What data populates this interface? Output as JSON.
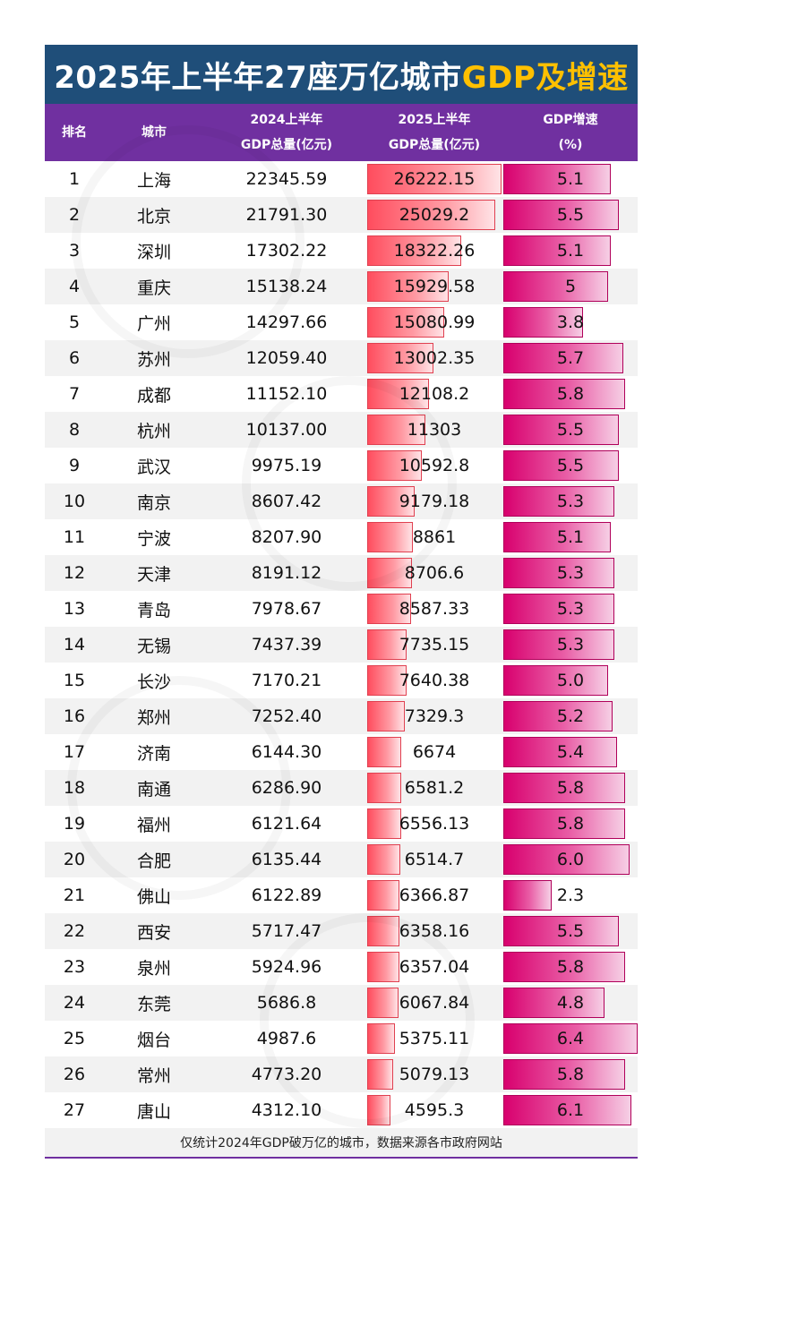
{
  "title": {
    "main": "2025年上半年27座万亿城市",
    "highlight": "GDP及增速"
  },
  "header": {
    "rank": "排名",
    "city": "城市",
    "gdp24_line1": "2024上半年",
    "gdp24_line2": "GDP总量(亿元)",
    "gdp25_line1": "2025上半年",
    "gdp25_line2": "GDP总量(亿元)",
    "growth_line1": "GDP增速",
    "growth_line2": "(%)"
  },
  "footer": "仅统计2024年GDP破万亿的城市，数据来源各市政府网站",
  "colors": {
    "title_bg": "#1f4e79",
    "title_highlight": "#ffc000",
    "header_bg": "#7030a0",
    "gdp_bar": "#ff4d5e",
    "growth_bar": "#d8006e"
  },
  "chart_data": {
    "type": "table",
    "columns": [
      "排名",
      "城市",
      "2024上半年GDP总量(亿元)",
      "2025上半年GDP总量(亿元)",
      "GDP增速(%)"
    ],
    "rows": [
      {
        "rank": "1",
        "city": "上海",
        "gdp2024": "22345.59",
        "gdp2025": "26222.15",
        "growth": "5.1"
      },
      {
        "rank": "2",
        "city": "北京",
        "gdp2024": "21791.30",
        "gdp2025": "25029.2",
        "growth": "5.5"
      },
      {
        "rank": "3",
        "city": "深圳",
        "gdp2024": "17302.22",
        "gdp2025": "18322.26",
        "growth": "5.1"
      },
      {
        "rank": "4",
        "city": "重庆",
        "gdp2024": "15138.24",
        "gdp2025": "15929.58",
        "growth": "5"
      },
      {
        "rank": "5",
        "city": "广州",
        "gdp2024": "14297.66",
        "gdp2025": "15080.99",
        "growth": "3.8"
      },
      {
        "rank": "6",
        "city": "苏州",
        "gdp2024": "12059.40",
        "gdp2025": "13002.35",
        "growth": "5.7"
      },
      {
        "rank": "7",
        "city": "成都",
        "gdp2024": "11152.10",
        "gdp2025": "12108.2",
        "growth": "5.8"
      },
      {
        "rank": "8",
        "city": "杭州",
        "gdp2024": "10137.00",
        "gdp2025": "11303",
        "growth": "5.5"
      },
      {
        "rank": "9",
        "city": "武汉",
        "gdp2024": "9975.19",
        "gdp2025": "10592.8",
        "growth": "5.5"
      },
      {
        "rank": "10",
        "city": "南京",
        "gdp2024": "8607.42",
        "gdp2025": "9179.18",
        "growth": "5.3"
      },
      {
        "rank": "11",
        "city": "宁波",
        "gdp2024": "8207.90",
        "gdp2025": "8861",
        "growth": "5.1"
      },
      {
        "rank": "12",
        "city": "天津",
        "gdp2024": "8191.12",
        "gdp2025": "8706.6",
        "growth": "5.3"
      },
      {
        "rank": "13",
        "city": "青岛",
        "gdp2024": "7978.67",
        "gdp2025": "8587.33",
        "growth": "5.3"
      },
      {
        "rank": "14",
        "city": "无锡",
        "gdp2024": "7437.39",
        "gdp2025": "7735.15",
        "growth": "5.3"
      },
      {
        "rank": "15",
        "city": "长沙",
        "gdp2024": "7170.21",
        "gdp2025": "7640.38",
        "growth": "5.0"
      },
      {
        "rank": "16",
        "city": "郑州",
        "gdp2024": "7252.40",
        "gdp2025": "7329.3",
        "growth": "5.2"
      },
      {
        "rank": "17",
        "city": "济南",
        "gdp2024": "6144.30",
        "gdp2025": "6674",
        "growth": "5.4"
      },
      {
        "rank": "18",
        "city": "南通",
        "gdp2024": "6286.90",
        "gdp2025": "6581.2",
        "growth": "5.8"
      },
      {
        "rank": "19",
        "city": "福州",
        "gdp2024": "6121.64",
        "gdp2025": "6556.13",
        "growth": "5.8"
      },
      {
        "rank": "20",
        "city": "合肥",
        "gdp2024": "6135.44",
        "gdp2025": "6514.7",
        "growth": "6.0"
      },
      {
        "rank": "21",
        "city": "佛山",
        "gdp2024": "6122.89",
        "gdp2025": "6366.87",
        "growth": "2.3"
      },
      {
        "rank": "22",
        "city": "西安",
        "gdp2024": "5717.47",
        "gdp2025": "6358.16",
        "growth": "5.5"
      },
      {
        "rank": "23",
        "city": "泉州",
        "gdp2024": "5924.96",
        "gdp2025": "6357.04",
        "growth": "5.8"
      },
      {
        "rank": "24",
        "city": "东莞",
        "gdp2024": "5686.8",
        "gdp2025": "6067.84",
        "growth": "4.8"
      },
      {
        "rank": "25",
        "city": "烟台",
        "gdp2024": "4987.6",
        "gdp2025": "5375.11",
        "growth": "6.4"
      },
      {
        "rank": "26",
        "city": "常州",
        "gdp2024": "4773.20",
        "gdp2025": "5079.13",
        "growth": "5.8"
      },
      {
        "rank": "27",
        "city": "唐山",
        "gdp2024": "4312.10",
        "gdp2025": "4595.3",
        "growth": "6.1"
      }
    ]
  }
}
